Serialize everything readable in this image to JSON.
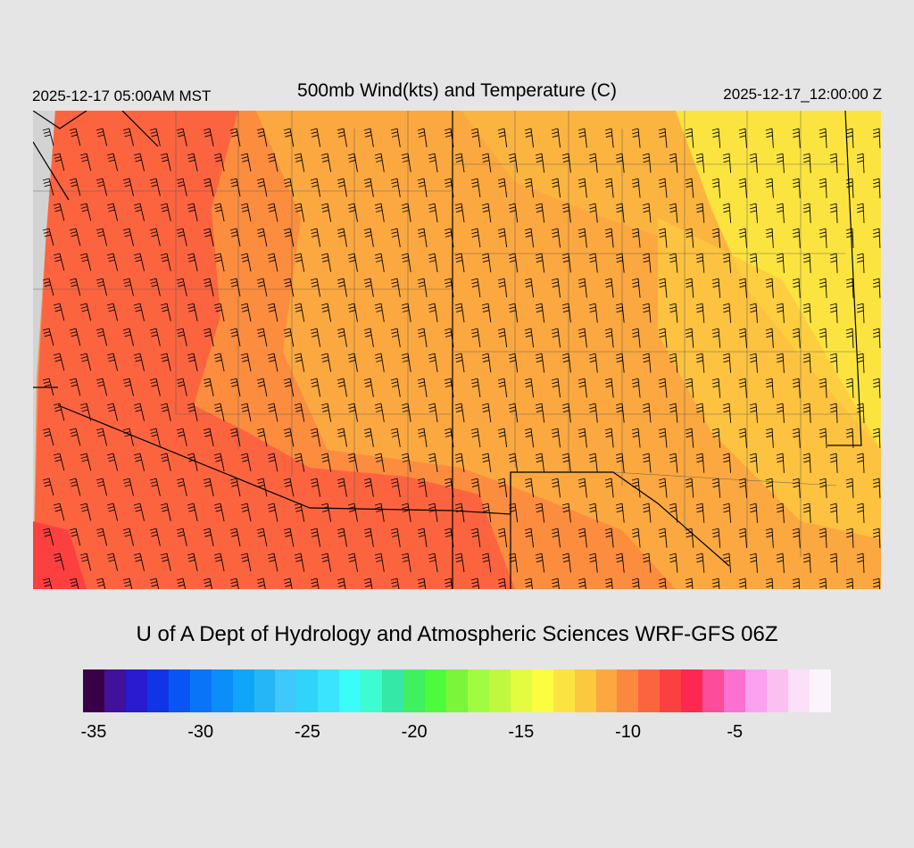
{
  "header": {
    "local_time": "2025-12-17 05:00AM MST",
    "title": "500mb Wind(kts) and Temperature (C)",
    "valid_time": "2025-12-17_12:00:00 Z"
  },
  "credit": "U of A Dept of Hydrology and Atmospheric Sciences WRF-GFS 06Z",
  "colorbar": {
    "colors": [
      "#3a0047",
      "#40119a",
      "#2a1ad0",
      "#1034e6",
      "#0a54f5",
      "#0a74f8",
      "#0c8ef8",
      "#10a6f8",
      "#24b6f6",
      "#3ec8fb",
      "#30d4fb",
      "#3ae4fc",
      "#3cfcf8",
      "#3cfcd0",
      "#34e8a8",
      "#40f060",
      "#4cfc3c",
      "#7cf43a",
      "#a0fc40",
      "#c0f840",
      "#e4fc40",
      "#fcfc40",
      "#fce440",
      "#fcc840",
      "#fca840",
      "#fc8840",
      "#fc6440",
      "#fc4040",
      "#fc2850",
      "#fc4c9a",
      "#fc70d0",
      "#fca0f0",
      "#fcc0f0",
      "#fce0f8",
      "#fcf4fc"
    ],
    "tick_labels": [
      {
        "label": "-35",
        "value": -35
      },
      {
        "label": "-30",
        "value": -30
      },
      {
        "label": "-25",
        "value": -25
      },
      {
        "label": "-20",
        "value": -20
      },
      {
        "label": "-15",
        "value": -15
      },
      {
        "label": "-10",
        "value": -10
      },
      {
        "label": "-5",
        "value": -5
      }
    ]
  },
  "map": {
    "variable": "500mb temperature with wind barbs",
    "temperature_colors": {
      "warm_north_east": "#fce440",
      "mid": "#fcc840",
      "orange": "#fca840",
      "dark_orange": "#fc8840",
      "red": "#fc6440",
      "deep_red": "#fc4040",
      "nodata": "#d3d3d3"
    }
  }
}
